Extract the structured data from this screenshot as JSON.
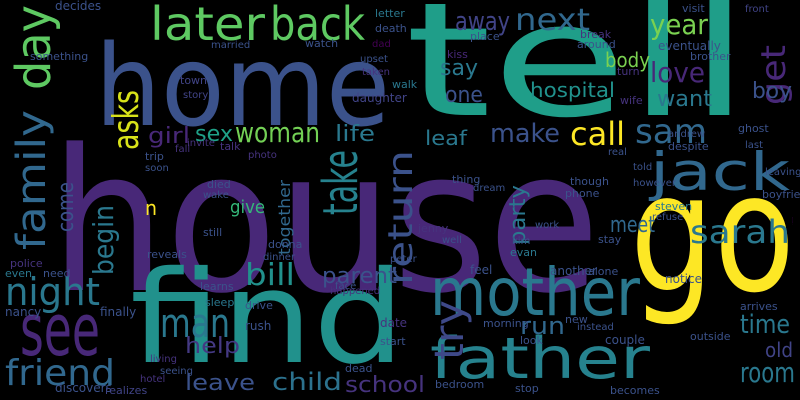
{
  "words": [
    "house",
    "tell",
    "home",
    "go",
    "find",
    "father",
    "mother",
    "later",
    "back",
    "day",
    "family",
    "jack",
    "sarah",
    "see",
    "friend",
    "night",
    "take",
    "return",
    "try",
    "man",
    "help",
    "leave",
    "child",
    "school",
    "bill",
    "parent",
    "woman",
    "sex",
    "life",
    "asks",
    "girl",
    "begin",
    "come",
    "away",
    "next",
    "say",
    "one",
    "year",
    "love",
    "want",
    "body",
    "hospital",
    "get",
    "boy",
    "make",
    "call",
    "sam",
    "leaf",
    "party",
    "meet",
    "run",
    "time",
    "old",
    "room",
    "give",
    "together",
    "n",
    "decides",
    "letter",
    "kiss",
    "place",
    "visit",
    "front",
    "brother",
    "break",
    "around",
    "turn",
    "wife",
    "town",
    "story",
    "married",
    "watch",
    "dad",
    "death",
    "upset",
    "taken",
    "walk",
    "daughter",
    "police",
    "even",
    "need",
    "nancy",
    "finally",
    "discovers",
    "realizes",
    "hotel",
    "living",
    "seeing",
    "reveals",
    "learns",
    "sleep",
    "drive",
    "rush",
    "dead",
    "date",
    "start",
    "morning",
    "new",
    "instead",
    "feel",
    "another",
    "alone",
    "notice",
    "arrives",
    "couple",
    "outside",
    "becomes",
    "stop",
    "bedroom",
    "look",
    "happened",
    "face",
    "donna",
    "dinner",
    "still",
    "died",
    "wake",
    "talk",
    "photo",
    "invite",
    "fall",
    "trip",
    "soon",
    "though",
    "phone",
    "steven",
    "refuse",
    "stay",
    "jenny",
    "work",
    "evan",
    "well",
    "kim",
    "peter",
    "thing",
    "dream",
    "andrew",
    "real",
    "leaving",
    "ghost",
    "last",
    "told",
    "however",
    "despite",
    "boyfriend",
    "young",
    "eventually",
    "something"
  ]
}
